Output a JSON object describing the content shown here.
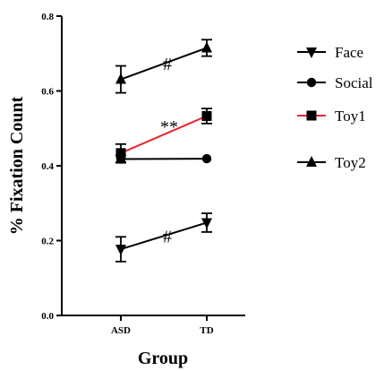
{
  "chart_data": {
    "type": "line",
    "xlabel": "Group",
    "ylabel": "% Fixation Count",
    "categories": [
      "ASD",
      "TD"
    ],
    "ylim": [
      0.0,
      0.8
    ],
    "yticks": [
      0.0,
      0.2,
      0.4,
      0.6,
      0.8
    ],
    "ytick_labels": [
      "0.0",
      "0.2",
      "0.4",
      "0.6",
      "0.8"
    ],
    "grid": false,
    "legend_position": "right",
    "series": [
      {
        "name": "Face",
        "marker": "triangle-down",
        "color": "#000000",
        "values": [
          0.177,
          0.248
        ],
        "errors": [
          0.033,
          0.025
        ]
      },
      {
        "name": "Social",
        "marker": "circle",
        "color": "#000000",
        "values": [
          0.418,
          0.419
        ],
        "errors": [
          0.01,
          0.0
        ]
      },
      {
        "name": "Toy1",
        "marker": "square",
        "color": "#000000",
        "line_color": "#e8262d",
        "values": [
          0.434,
          0.533
        ],
        "errors": [
          0.024,
          0.02
        ]
      },
      {
        "name": "Toy2",
        "marker": "triangle-up",
        "color": "#000000",
        "values": [
          0.631,
          0.715
        ],
        "errors": [
          0.036,
          0.022
        ]
      }
    ],
    "annotations": [
      {
        "text": "#",
        "series": "Toy2"
      },
      {
        "text": "**",
        "series": "Toy1"
      },
      {
        "text": "#",
        "series": "Face"
      }
    ]
  }
}
